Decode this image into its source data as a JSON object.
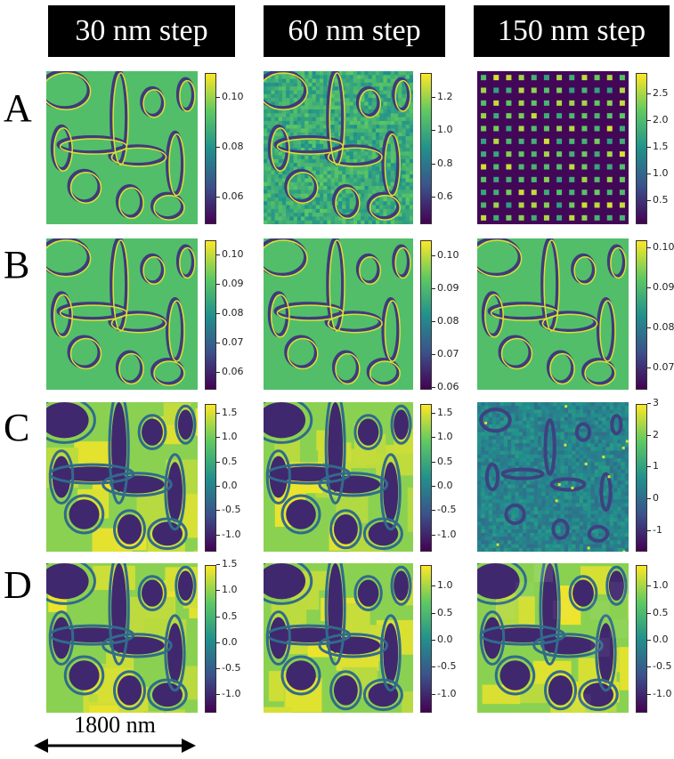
{
  "columns": [
    "30 nm step",
    "60 nm step",
    "150 nm step"
  ],
  "rows": [
    "A",
    "B",
    "C",
    "D"
  ],
  "scale_bar": "1800 nm",
  "colormap": [
    "#440154",
    "#3b528b",
    "#21918c",
    "#5ec962",
    "#fde725"
  ],
  "panels": [
    {
      "row": "A",
      "col": "30 nm step",
      "ticks": [
        "0.10",
        "0.08",
        "0.06"
      ],
      "vmin": 0.05,
      "vmax": 0.11,
      "pattern": "edges"
    },
    {
      "row": "A",
      "col": "60 nm step",
      "ticks": [
        "1.2",
        "1.0",
        "0.8",
        "0.6"
      ],
      "vmin": 0.45,
      "vmax": 1.35,
      "pattern": "noisy-edges"
    },
    {
      "row": "A",
      "col": "150 nm step",
      "ticks": [
        "2.5",
        "2.0",
        "1.5",
        "1.0",
        "0.5"
      ],
      "vmin": 0.1,
      "vmax": 2.9,
      "pattern": "dots"
    },
    {
      "row": "B",
      "col": "30 nm step",
      "ticks": [
        "0.10",
        "0.09",
        "0.08",
        "0.07",
        "0.06"
      ],
      "vmin": 0.055,
      "vmax": 0.105,
      "pattern": "edges"
    },
    {
      "row": "B",
      "col": "60 nm step",
      "ticks": [
        "0.10",
        "0.09",
        "0.08",
        "0.07",
        "0.06"
      ],
      "vmin": 0.06,
      "vmax": 0.105,
      "pattern": "edges"
    },
    {
      "row": "B",
      "col": "150 nm step",
      "ticks": [
        "0.10",
        "0.09",
        "0.08",
        "0.07"
      ],
      "vmin": 0.065,
      "vmax": 0.102,
      "pattern": "edges"
    },
    {
      "row": "C",
      "col": "30 nm step",
      "ticks": [
        "1.5",
        "1.0",
        "0.5",
        "0.0",
        "-0.5",
        "-1.0"
      ],
      "vmin": -1.3,
      "vmax": 1.7,
      "pattern": "height"
    },
    {
      "row": "C",
      "col": "60 nm step",
      "ticks": [
        "1.5",
        "1.0",
        "0.5",
        "0.0",
        "-0.5",
        "-1.0"
      ],
      "vmin": -1.3,
      "vmax": 1.7,
      "pattern": "height"
    },
    {
      "row": "C",
      "col": "150 nm step",
      "ticks": [
        "3",
        "2",
        "1",
        "0",
        "-1"
      ],
      "vmin": -1.6,
      "vmax": 3,
      "pattern": "noisy"
    },
    {
      "row": "D",
      "col": "30 nm step",
      "ticks": [
        "1.5",
        "1.0",
        "0.5",
        "0.0",
        "-0.5",
        "-1.0"
      ],
      "vmin": -1.3,
      "vmax": 1.5,
      "pattern": "height"
    },
    {
      "row": "D",
      "col": "60 nm step",
      "ticks": [
        "1.0",
        "0.5",
        "0.0",
        "-0.5",
        "-1.0"
      ],
      "vmin": -1.3,
      "vmax": 1.4,
      "pattern": "height"
    },
    {
      "row": "D",
      "col": "150 nm step",
      "ticks": [
        "1.0",
        "0.5",
        "0.0",
        "-0.5",
        "-1.0"
      ],
      "vmin": -1.3,
      "vmax": 1.4,
      "pattern": "height-block"
    }
  ]
}
